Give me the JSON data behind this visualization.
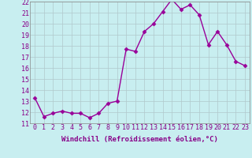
{
  "x": [
    0,
    1,
    2,
    3,
    4,
    5,
    6,
    7,
    8,
    9,
    10,
    11,
    12,
    13,
    14,
    15,
    16,
    17,
    18,
    19,
    20,
    21,
    22,
    23
  ],
  "y": [
    13.3,
    11.6,
    11.9,
    12.1,
    11.9,
    11.9,
    11.5,
    11.9,
    12.8,
    13.0,
    17.7,
    17.5,
    19.3,
    20.0,
    21.1,
    22.2,
    21.3,
    21.7,
    20.8,
    18.1,
    19.3,
    18.1,
    16.6,
    16.2
  ],
  "line_color": "#990099",
  "marker": "D",
  "markersize": 2.5,
  "linewidth": 1.0,
  "xlabel": "Windchill (Refroidissement éolien,°C)",
  "xlabel_fontsize": 6.5,
  "ytick_min": 11,
  "ytick_max": 22,
  "background_color": "#c8eef0",
  "grid_color": "#b0c8cc",
  "tick_fontsize": 6
}
